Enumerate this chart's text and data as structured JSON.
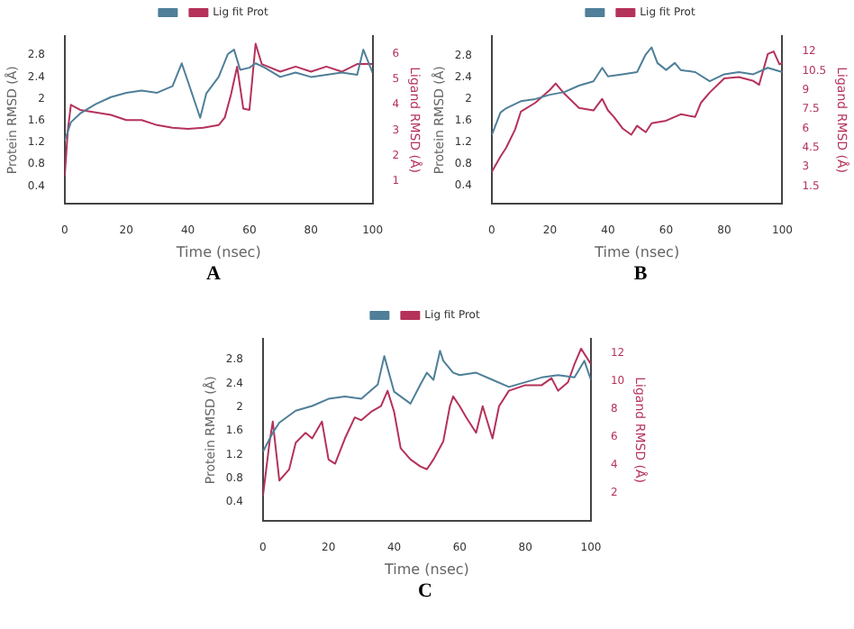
{
  "chart_data": [
    {
      "type": "line",
      "xlabel": "Time (nsec)",
      "ylabel": "Protein RMSD (Å)",
      "y2label": "Ligand RMSD (Å)",
      "xlim": [
        0,
        100
      ],
      "xticks": [
        0,
        20,
        40,
        60,
        80,
        100
      ],
      "ylim": [
        0.07,
        3.15
      ],
      "yticks": [
        0.4,
        0.8,
        1.2,
        1.6,
        2.0,
        2.4,
        2.8
      ],
      "y2lim": [
        0.1,
        6.7
      ],
      "y2ticks": [
        1,
        2,
        3,
        4,
        5,
        6
      ],
      "legend": "top",
      "marker": "none",
      "line_style": "solid",
      "annotations": [
        "A"
      ],
      "series": [
        {
          "color": "#4f7f99",
          "x": [
            0,
            2,
            5,
            10,
            15,
            20,
            25,
            30,
            35,
            38,
            40,
            44,
            46,
            50,
            53,
            55,
            57,
            60,
            62,
            65,
            70,
            75,
            80,
            85,
            90,
            95,
            97,
            100
          ],
          "values": [
            1.23,
            1.57,
            1.73,
            1.9,
            2.03,
            2.11,
            2.15,
            2.11,
            2.23,
            2.65,
            2.32,
            1.65,
            2.1,
            2.4,
            2.82,
            2.9,
            2.53,
            2.57,
            2.65,
            2.57,
            2.4,
            2.48,
            2.4,
            2.44,
            2.48,
            2.44,
            2.9,
            2.48
          ]
        },
        {
          "name": "Lig fit Prot",
          "color": "#b5325a",
          "axis": "y2",
          "x": [
            0,
            1,
            2,
            5,
            10,
            15,
            20,
            25,
            30,
            35,
            40,
            45,
            50,
            52,
            54,
            56,
            58,
            60,
            61,
            62,
            64,
            66,
            70,
            75,
            80,
            85,
            90,
            95,
            100
          ],
          "values": [
            1.2,
            3.0,
            4.0,
            3.8,
            3.7,
            3.6,
            3.4,
            3.4,
            3.2,
            3.1,
            3.05,
            3.1,
            3.2,
            3.5,
            4.4,
            5.5,
            3.85,
            3.8,
            5.1,
            6.4,
            5.6,
            5.5,
            5.3,
            5.5,
            5.3,
            5.5,
            5.3,
            5.6,
            5.6
          ]
        }
      ]
    },
    {
      "type": "line",
      "xlabel": "Time (nsec)",
      "ylabel": "Protein RMSD (Å)",
      "y2label": "Ligand RMSD (Å)",
      "xlim": [
        0,
        100
      ],
      "xticks": [
        0,
        20,
        40,
        60,
        80,
        100
      ],
      "ylim": [
        0.05,
        3.17
      ],
      "yticks": [
        0.4,
        0.8,
        1.2,
        1.6,
        2.0,
        2.4,
        2.8
      ],
      "y2lim": [
        0.1,
        13.2
      ],
      "y2ticks": [
        1.5,
        3.0,
        4.5,
        6.0,
        7.5,
        9.0,
        10.5,
        12.0
      ],
      "legend": "top",
      "marker": "none",
      "line_style": "solid",
      "annotations": [
        "B"
      ],
      "series": [
        {
          "color": "#4f7f99",
          "x": [
            0,
            3,
            5,
            10,
            15,
            20,
            25,
            30,
            35,
            38,
            40,
            45,
            50,
            53,
            55,
            57,
            60,
            63,
            65,
            70,
            75,
            80,
            85,
            90,
            95,
            100
          ],
          "values": [
            1.33,
            1.75,
            1.83,
            1.96,
            2.0,
            2.08,
            2.13,
            2.25,
            2.33,
            2.58,
            2.42,
            2.46,
            2.5,
            2.83,
            2.96,
            2.67,
            2.54,
            2.67,
            2.54,
            2.5,
            2.33,
            2.46,
            2.5,
            2.46,
            2.58,
            2.5
          ]
        },
        {
          "name": "Lig fit Prot",
          "color": "#b5325a",
          "axis": "y2",
          "x": [
            0,
            3,
            5,
            8,
            10,
            15,
            20,
            22,
            25,
            30,
            35,
            38,
            40,
            42,
            45,
            48,
            50,
            53,
            55,
            60,
            65,
            70,
            72,
            75,
            80,
            85,
            90,
            92,
            95,
            97,
            99,
            100
          ],
          "values": [
            2.6,
            3.8,
            4.5,
            5.9,
            7.3,
            8.0,
            9.0,
            9.5,
            8.7,
            7.6,
            7.4,
            8.3,
            7.4,
            6.9,
            6.0,
            5.5,
            6.2,
            5.7,
            6.4,
            6.6,
            7.1,
            6.9,
            8.0,
            8.8,
            9.9,
            10.0,
            9.7,
            9.4,
            11.8,
            12.0,
            11.0,
            11.1
          ]
        }
      ]
    },
    {
      "type": "line",
      "xlabel": "Time (nsec)",
      "ylabel": "Protein RMSD (Å)",
      "y2label": "Ligand RMSD (Å)",
      "xlim": [
        0,
        100
      ],
      "xticks": [
        0,
        20,
        40,
        60,
        80,
        100
      ],
      "ylim": [
        0.08,
        3.15
      ],
      "yticks": [
        0.4,
        0.8,
        1.2,
        1.6,
        2.0,
        2.4,
        2.8
      ],
      "y2lim": [
        0,
        13
      ],
      "y2ticks": [
        2,
        4,
        6,
        8,
        10,
        12
      ],
      "legend": "top",
      "marker": "none",
      "line_style": "solid",
      "annotations": [
        "C"
      ],
      "series": [
        {
          "color": "#4f7f99",
          "x": [
            0,
            3,
            5,
            10,
            15,
            20,
            25,
            30,
            35,
            37,
            40,
            43,
            45,
            48,
            50,
            52,
            54,
            55,
            58,
            60,
            65,
            70,
            75,
            80,
            85,
            90,
            95,
            98,
            100
          ],
          "values": [
            1.25,
            1.57,
            1.74,
            1.94,
            2.02,
            2.14,
            2.18,
            2.14,
            2.38,
            2.86,
            2.26,
            2.14,
            2.06,
            2.38,
            2.58,
            2.46,
            2.95,
            2.78,
            2.58,
            2.54,
            2.58,
            2.46,
            2.34,
            2.42,
            2.5,
            2.54,
            2.5,
            2.78,
            2.46
          ]
        },
        {
          "name": "Lig fit Prot",
          "color": "#b5325a",
          "axis": "y2",
          "x": [
            0,
            2,
            3,
            5,
            8,
            10,
            13,
            15,
            18,
            20,
            22,
            25,
            28,
            30,
            33,
            36,
            38,
            40,
            42,
            45,
            48,
            50,
            52,
            55,
            57,
            58,
            60,
            62,
            65,
            67,
            70,
            72,
            75,
            80,
            85,
            88,
            90,
            93,
            95,
            97,
            100
          ],
          "values": [
            1.8,
            5.6,
            7.1,
            2.9,
            3.7,
            5.6,
            6.3,
            5.9,
            7.1,
            4.4,
            4.1,
            5.9,
            7.4,
            7.2,
            7.8,
            8.2,
            9.3,
            7.8,
            5.2,
            4.4,
            3.9,
            3.7,
            4.4,
            5.7,
            8.2,
            8.9,
            8.2,
            7.4,
            6.3,
            8.2,
            5.9,
            8.2,
            9.3,
            9.7,
            9.7,
            10.2,
            9.3,
            9.9,
            11.2,
            12.3,
            11.2
          ]
        }
      ]
    }
  ]
}
